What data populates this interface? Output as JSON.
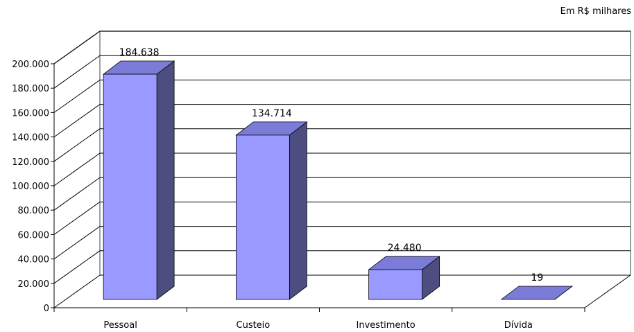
{
  "chart_data": {
    "type": "bar",
    "unit_note": "Em R$ milhares",
    "categories": [
      "Pessoal",
      "Custeio",
      "Investimento",
      "Dívida"
    ],
    "values": [
      184638,
      134714,
      24480,
      19
    ],
    "data_labels": [
      "184.638",
      "134.714",
      "24.480",
      "19"
    ],
    "y_ticks": [
      0,
      20000,
      40000,
      60000,
      80000,
      100000,
      120000,
      140000,
      160000,
      180000,
      200000
    ],
    "y_tick_labels": [
      "0",
      "20.000",
      "40.000",
      "60.000",
      "80.000",
      "100.000",
      "120.000",
      "140.000",
      "160.000",
      "180.000",
      "200.000"
    ],
    "ylim": [
      0,
      200000
    ],
    "grid": true,
    "style": "3d",
    "colors": {
      "bar_front": "#9999ff",
      "bar_top": "#7b7bd8",
      "bar_side": "#4d4d80",
      "grid": "#000000",
      "wall": "#ffffff",
      "frame": "#808080"
    }
  }
}
